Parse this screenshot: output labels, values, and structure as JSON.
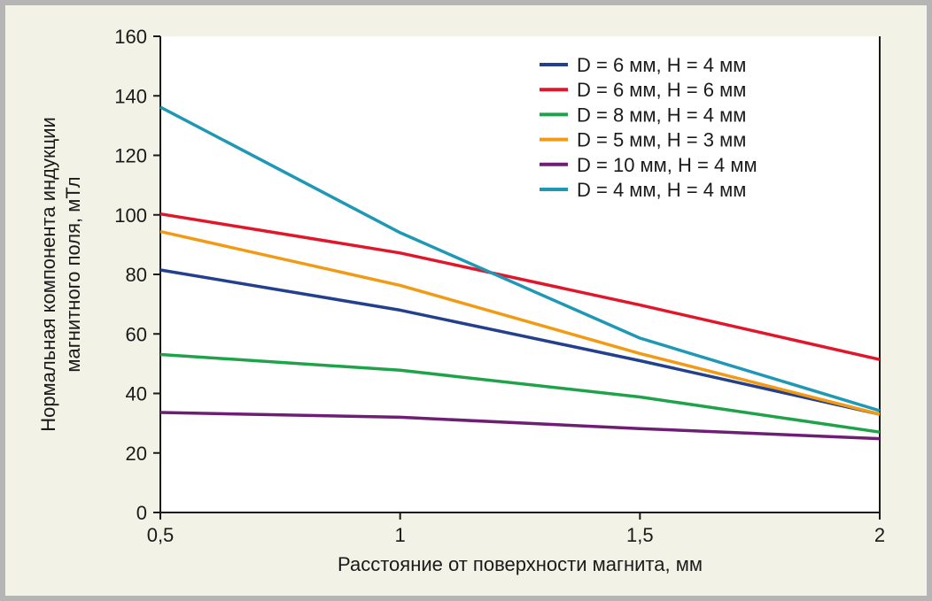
{
  "chart_data": {
    "type": "line",
    "xlabel": "Расстояние от поверхности магнита, мм",
    "ylabel_lines": [
      "Нормальная компонента индукции",
      "магнитного поля, мТл"
    ],
    "xlim": [
      0.5,
      2
    ],
    "ylim": [
      0,
      160
    ],
    "x_ticks": [
      0.5,
      1,
      1.5,
      2
    ],
    "x_tick_labels": [
      "0,5",
      "1",
      "1,5",
      "2"
    ],
    "y_ticks": [
      0,
      20,
      40,
      60,
      80,
      100,
      120,
      140,
      160
    ],
    "y_tick_labels": [
      "0",
      "20",
      "40",
      "60",
      "80",
      "100",
      "120",
      "140",
      "160"
    ],
    "grid": false,
    "legend_position": "top-right",
    "x": [
      0.5,
      1,
      1.5,
      2
    ],
    "series": [
      {
        "name": "D = 6 мм, H = 4 мм",
        "color": "#23408e",
        "values": [
          81.5,
          68,
          51,
          33
        ]
      },
      {
        "name": "D = 6 мм, H = 6 мм",
        "color": "#e2162a",
        "values": [
          100.3,
          87.2,
          69.7,
          51.4
        ]
      },
      {
        "name": "D = 8 мм, H = 4 мм",
        "color": "#1fa34a",
        "values": [
          53.1,
          47.8,
          38.8,
          27
        ]
      },
      {
        "name": "D = 5 мм, H = 3 мм",
        "color": "#f39a14",
        "values": [
          94.4,
          76.3,
          53.4,
          33
        ]
      },
      {
        "name": "D = 10 мм, H = 4 мм",
        "color": "#6e1f74",
        "values": [
          33.6,
          32,
          28.2,
          24.8
        ]
      },
      {
        "name": "D = 4 мм, H = 4 мм",
        "color": "#1e98b4",
        "values": [
          136.2,
          94,
          58.6,
          34.2
        ]
      }
    ]
  }
}
